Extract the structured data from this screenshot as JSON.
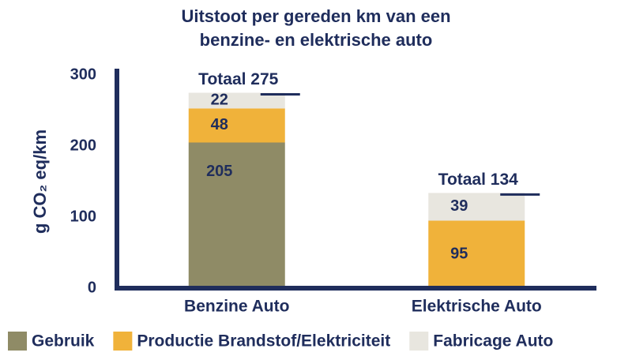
{
  "chart_data": {
    "type": "stacked-bar",
    "title_lines": [
      "Uitstoot per gereden km van een",
      "benzine- en elektrische auto"
    ],
    "y_label": "g CO₂ eq/km",
    "categories": [
      "Benzine Auto",
      "Elektrische Auto"
    ],
    "series": [
      {
        "name": "Gebruik",
        "color": "#8f8b66",
        "values": [
          205,
          0
        ]
      },
      {
        "name": "Productie Brandstof/Elektriciteit",
        "color": "#f0b23a",
        "values": [
          48,
          95
        ]
      },
      {
        "name": "Fabricage Auto",
        "color": "#e8e6df",
        "values": [
          22,
          39
        ]
      }
    ],
    "total_labels": [
      "Totaal 275",
      "Totaal 134"
    ],
    "ylim": [
      0,
      300
    ],
    "yticks": [
      0,
      100,
      200,
      300
    ]
  }
}
